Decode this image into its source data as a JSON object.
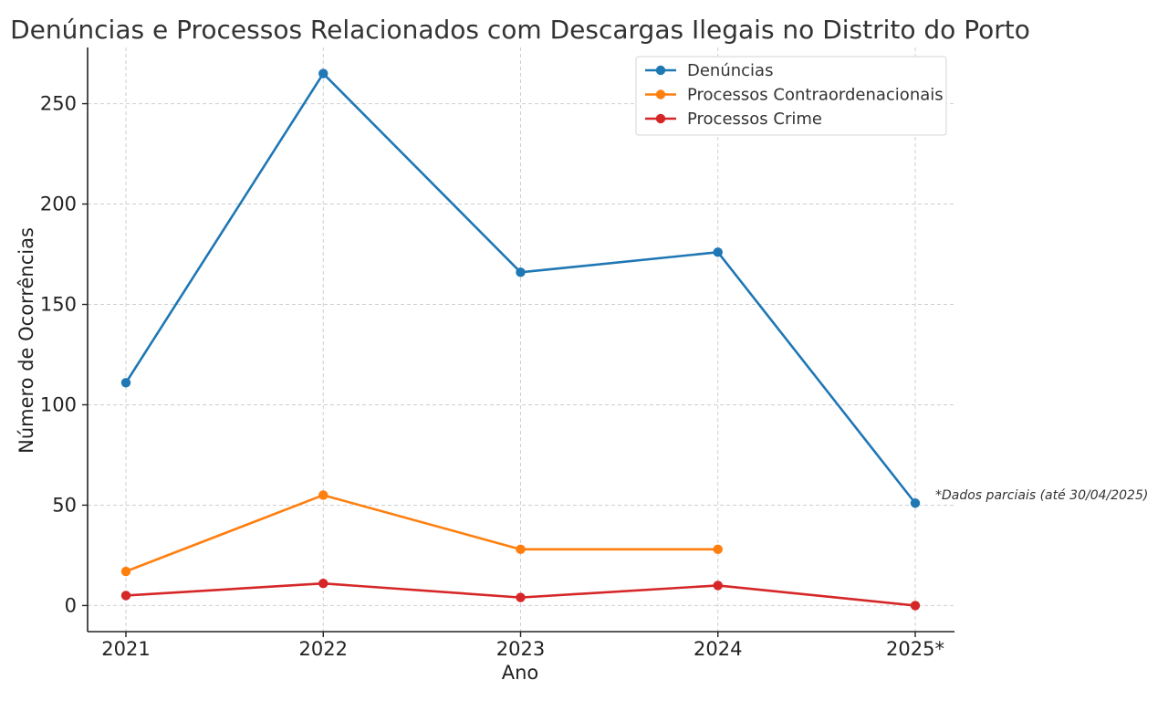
{
  "chart_data": {
    "type": "line",
    "title": "Denúncias e Processos Relacionados com Descargas Ilegais no Distrito do Porto",
    "xlabel": "Ano",
    "ylabel": "Número de Ocorrências",
    "categories": [
      "2021",
      "2022",
      "2023",
      "2024",
      "2025*"
    ],
    "ylim": [
      -13,
      278
    ],
    "yticks": [
      0,
      50,
      100,
      150,
      200,
      250
    ],
    "grid": true,
    "legend_position": "top-right",
    "series": [
      {
        "name": "Denúncias",
        "color": "#1f77b4",
        "values": [
          111,
          265,
          166,
          176,
          51
        ]
      },
      {
        "name": "Processos Contraordenacionais",
        "color": "#ff7f0e",
        "values": [
          17,
          55,
          28,
          28,
          null
        ]
      },
      {
        "name": "Processos Crime",
        "color": "#d62728",
        "values": [
          5,
          11,
          4,
          10,
          0
        ]
      }
    ],
    "annotations": [
      {
        "text": "*Dados parciais (até 30/04/2025)",
        "category": "2025*",
        "y": 51
      }
    ]
  }
}
